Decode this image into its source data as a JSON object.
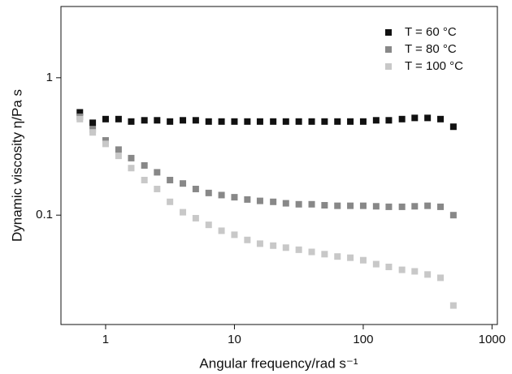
{
  "chart_data": {
    "type": "scatter",
    "x_label": "Angular frequency/rad s⁻¹",
    "y_label": "Dynamic viscosity η/Pa s",
    "log_x": true,
    "log_y": true,
    "x": [
      0.631,
      0.794,
      1,
      1.26,
      1.58,
      2,
      2.51,
      3.16,
      3.98,
      5.01,
      6.31,
      7.94,
      10,
      12.6,
      15.8,
      20,
      25.1,
      31.6,
      39.8,
      50.1,
      63.1,
      79.4,
      100,
      126,
      158,
      200,
      251,
      316,
      398,
      501
    ],
    "series": [
      {
        "name": "T = 60 °C",
        "color": "#111111",
        "values": [
          0.56,
          0.47,
          0.5,
          0.5,
          0.48,
          0.49,
          0.49,
          0.48,
          0.49,
          0.49,
          0.48,
          0.48,
          0.48,
          0.48,
          0.48,
          0.48,
          0.48,
          0.48,
          0.48,
          0.48,
          0.48,
          0.48,
          0.48,
          0.49,
          0.49,
          0.5,
          0.51,
          0.51,
          0.5,
          0.44
        ]
      },
      {
        "name": "T = 80 °C",
        "color": "#888888",
        "values": [
          0.52,
          0.42,
          0.35,
          0.3,
          0.26,
          0.23,
          0.205,
          0.18,
          0.17,
          0.155,
          0.145,
          0.14,
          0.135,
          0.13,
          0.127,
          0.125,
          0.122,
          0.12,
          0.12,
          0.118,
          0.117,
          0.117,
          0.117,
          0.116,
          0.115,
          0.115,
          0.116,
          0.117,
          0.115,
          0.1
        ]
      },
      {
        "name": "T = 100 °C",
        "color": "#c8c8c8",
        "values": [
          0.5,
          0.4,
          0.33,
          0.27,
          0.22,
          0.18,
          0.155,
          0.125,
          0.105,
          0.095,
          0.085,
          0.077,
          0.072,
          0.066,
          0.062,
          0.06,
          0.058,
          0.056,
          0.054,
          0.052,
          0.05,
          0.049,
          0.047,
          0.044,
          0.042,
          0.04,
          0.039,
          0.037,
          0.035,
          0.022
        ]
      }
    ],
    "xlim": [
      0.45,
      1100
    ],
    "ylim": [
      0.016,
      3.3
    ],
    "xticks": [
      1,
      10,
      100,
      1000
    ],
    "yticks": [
      0.1,
      1
    ],
    "legend": "upper right"
  }
}
